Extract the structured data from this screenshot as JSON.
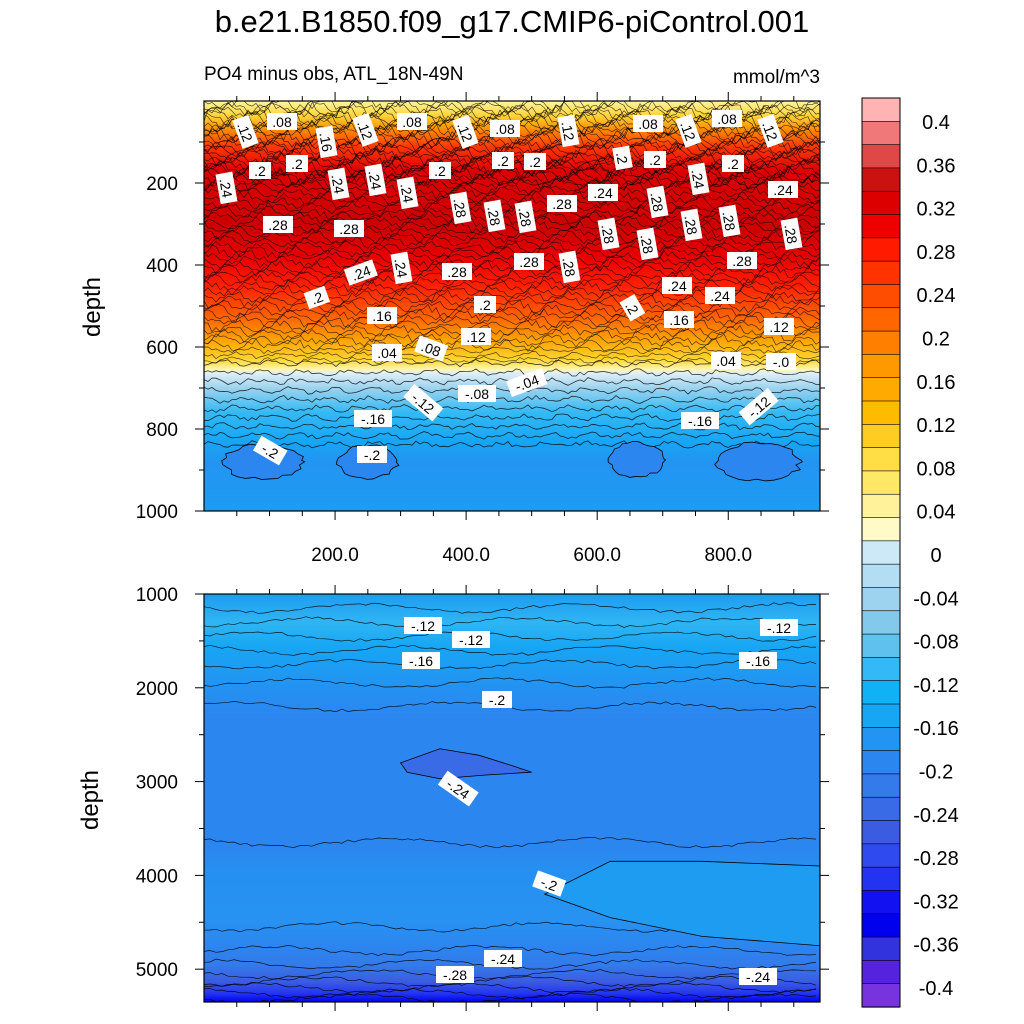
{
  "figure": {
    "title": "b.e21.B1850.f09_g17.CMIP6-piControl.001",
    "subtitle_left": "PO4 minus obs, ATL_18N-49N",
    "subtitle_right": "mmol/m^3"
  },
  "chart_data": [
    {
      "type": "contour",
      "panel": "upper",
      "title": "PO4 minus obs, ATL_18N-49N",
      "units": "mmol/m^3",
      "xlabel": "",
      "ylabel": "depth",
      "xlim": [
        0,
        940
      ],
      "ylim": [
        1000,
        0
      ],
      "xticks": [
        200,
        400,
        600,
        800
      ],
      "xtick_labels": [
        "200.0",
        "400.0",
        "600.0",
        "800.0"
      ],
      "yticks": [
        200,
        400,
        600,
        800,
        1000
      ],
      "ytick_labels": [
        "200",
        "400",
        "600",
        "800",
        "1000"
      ],
      "approx_profile_depth": [
        0,
        60,
        120,
        200,
        300,
        400,
        500,
        560,
        620,
        650,
        680,
        720,
        780,
        850,
        920,
        1000
      ],
      "approx_profile_value": [
        0.06,
        0.1,
        0.16,
        0.24,
        0.3,
        0.28,
        0.2,
        0.12,
        0.04,
        0.0,
        -0.04,
        -0.08,
        -0.14,
        -0.19,
        -0.21,
        -0.18
      ],
      "contour_labels": [
        ".12",
        ".08",
        ".16",
        ".2",
        ".24",
        ".28",
        ".04",
        "-.0",
        "-.04",
        "-.08",
        "-.12",
        "-.16",
        "-.2"
      ]
    },
    {
      "type": "contour",
      "panel": "lower",
      "xlabel": "",
      "ylabel": "depth",
      "xlim": [
        0,
        940
      ],
      "ylim": [
        5350,
        1000
      ],
      "yticks": [
        1000,
        2000,
        3000,
        4000,
        5000
      ],
      "ytick_labels": [
        "1000",
        "2000",
        "3000",
        "4000",
        "5000"
      ],
      "approx_profile_depth": [
        1000,
        1400,
        1800,
        2200,
        3000,
        3700,
        4300,
        4800,
        5100,
        5350
      ],
      "approx_profile_value": [
        -0.16,
        -0.12,
        -0.16,
        -0.2,
        -0.22,
        -0.2,
        -0.18,
        -0.22,
        -0.26,
        -0.34
      ],
      "contour_labels": [
        "-.12",
        "-.16",
        "-.2",
        "-.24",
        "-.28"
      ]
    }
  ],
  "colorbar": {
    "tick_labels": [
      "0.4",
      "0.36",
      "0.32",
      "0.28",
      "0.24",
      "0.2",
      "0.16",
      "0.12",
      "0.08",
      "0.04",
      "0",
      "-0.04",
      "-0.08",
      "-0.12",
      "-0.16",
      "-0.2",
      "-0.24",
      "-0.28",
      "-0.32",
      "-0.36",
      "-0.4"
    ],
    "colors_top_to_bottom": [
      "#FFB3B3",
      "#F07878",
      "#E04848",
      "#CC1111",
      "#DD0000",
      "#EE0000",
      "#FF1A00",
      "#FF3300",
      "#FF4D00",
      "#FF6600",
      "#FF8000",
      "#FF9900",
      "#FFAA00",
      "#FFBB00",
      "#FFCC22",
      "#FFDD44",
      "#FFE866",
      "#FFF29A",
      "#FFFAC8",
      "#CDE8F7",
      "#B3DDF2",
      "#9DD3EE",
      "#83C9EC",
      "#5EC1EE",
      "#33B9F5",
      "#0FB3F5",
      "#17A6F4",
      "#2294F2",
      "#2C86F0",
      "#337AEB",
      "#396BE6",
      "#3B5CE0",
      "#2F4AEE",
      "#2233F2",
      "#1111F2",
      "#0000EE",
      "#3333DD",
      "#5522DD",
      "#7733DD"
    ]
  }
}
